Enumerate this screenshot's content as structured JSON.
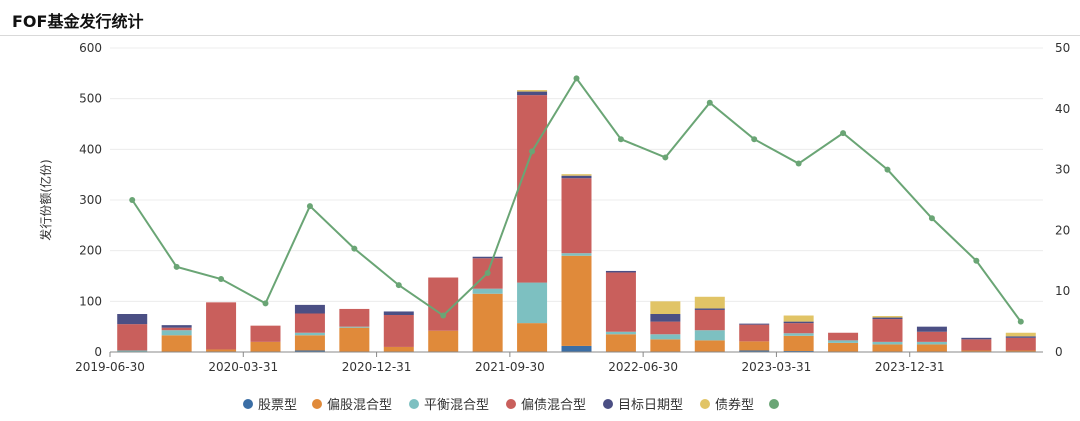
{
  "header": {
    "title": "FOF基金发行统计"
  },
  "colors": {
    "stock": "#3b6ea5",
    "partial_equity": "#e08a3a",
    "balanced": "#7dc0c1",
    "partial_bond": "#c95f5c",
    "target_date": "#4b4f84",
    "bond": "#e1c466",
    "count_line": "#6aa575"
  },
  "chart_data": {
    "type": "bar",
    "title": "FOF基金发行统计",
    "ylabel": "发行份额(亿份)",
    "ylim": [
      0,
      600
    ],
    "y2lim": [
      0,
      50
    ],
    "y_ticks": [
      0,
      100,
      200,
      300,
      400,
      500,
      600
    ],
    "y2_ticks": [
      0,
      10,
      20,
      30,
      40,
      50
    ],
    "x_tick_labels": [
      "2019-06-30",
      "2020-03-31",
      "2020-12-31",
      "2021-09-30",
      "2022-06-30",
      "2023-03-31",
      "2023-12-31"
    ],
    "legend_position": "bottom",
    "categories": [
      "2019-06-30",
      "2019-09-30",
      "2019-12-31",
      "2020-03-31",
      "2020-06-30",
      "2020-09-30",
      "2020-12-31",
      "2021-03-31",
      "2021-06-30",
      "2021-09-30",
      "2021-12-31",
      "2022-03-31",
      "2022-06-30",
      "2022-09-30",
      "2022-12-31",
      "2023-03-31",
      "2023-06-30",
      "2023-09-30",
      "2023-12-31",
      "2024-03-31",
      "2024-06-30"
    ],
    "series": [
      {
        "name": "股票型",
        "values": [
          0,
          0,
          0,
          0,
          3,
          0,
          0,
          0,
          0,
          0,
          12,
          0,
          0,
          0,
          3,
          2,
          0,
          0,
          0,
          0,
          0
        ]
      },
      {
        "name": "偏股混合型",
        "values": [
          0,
          33,
          5,
          20,
          30,
          48,
          10,
          42,
          115,
          57,
          178,
          35,
          25,
          23,
          18,
          30,
          18,
          15,
          15,
          3,
          3
        ]
      },
      {
        "name": "平衡混合型",
        "values": [
          3,
          10,
          0,
          0,
          5,
          2,
          0,
          0,
          10,
          80,
          5,
          5,
          10,
          20,
          0,
          5,
          5,
          5,
          5,
          0,
          0
        ]
      },
      {
        "name": "偏债混合型",
        "values": [
          52,
          5,
          93,
          32,
          38,
          35,
          63,
          105,
          60,
          370,
          148,
          117,
          25,
          40,
          33,
          20,
          15,
          45,
          20,
          22,
          25
        ]
      },
      {
        "name": "目标日期型",
        "values": [
          20,
          5,
          0,
          0,
          17,
          0,
          7,
          0,
          3,
          7,
          5,
          3,
          15,
          3,
          2,
          3,
          0,
          3,
          10,
          3,
          3
        ]
      },
      {
        "name": "债券型",
        "values": [
          0,
          0,
          0,
          0,
          0,
          0,
          0,
          0,
          0,
          3,
          3,
          0,
          25,
          23,
          0,
          12,
          0,
          3,
          0,
          0,
          7
        ]
      },
      {
        "name": "",
        "values": [
          25,
          14,
          12,
          8,
          24,
          17,
          11,
          6,
          13,
          33,
          45,
          35,
          32,
          41,
          35,
          31,
          36,
          30,
          22,
          15,
          5
        ]
      }
    ]
  }
}
